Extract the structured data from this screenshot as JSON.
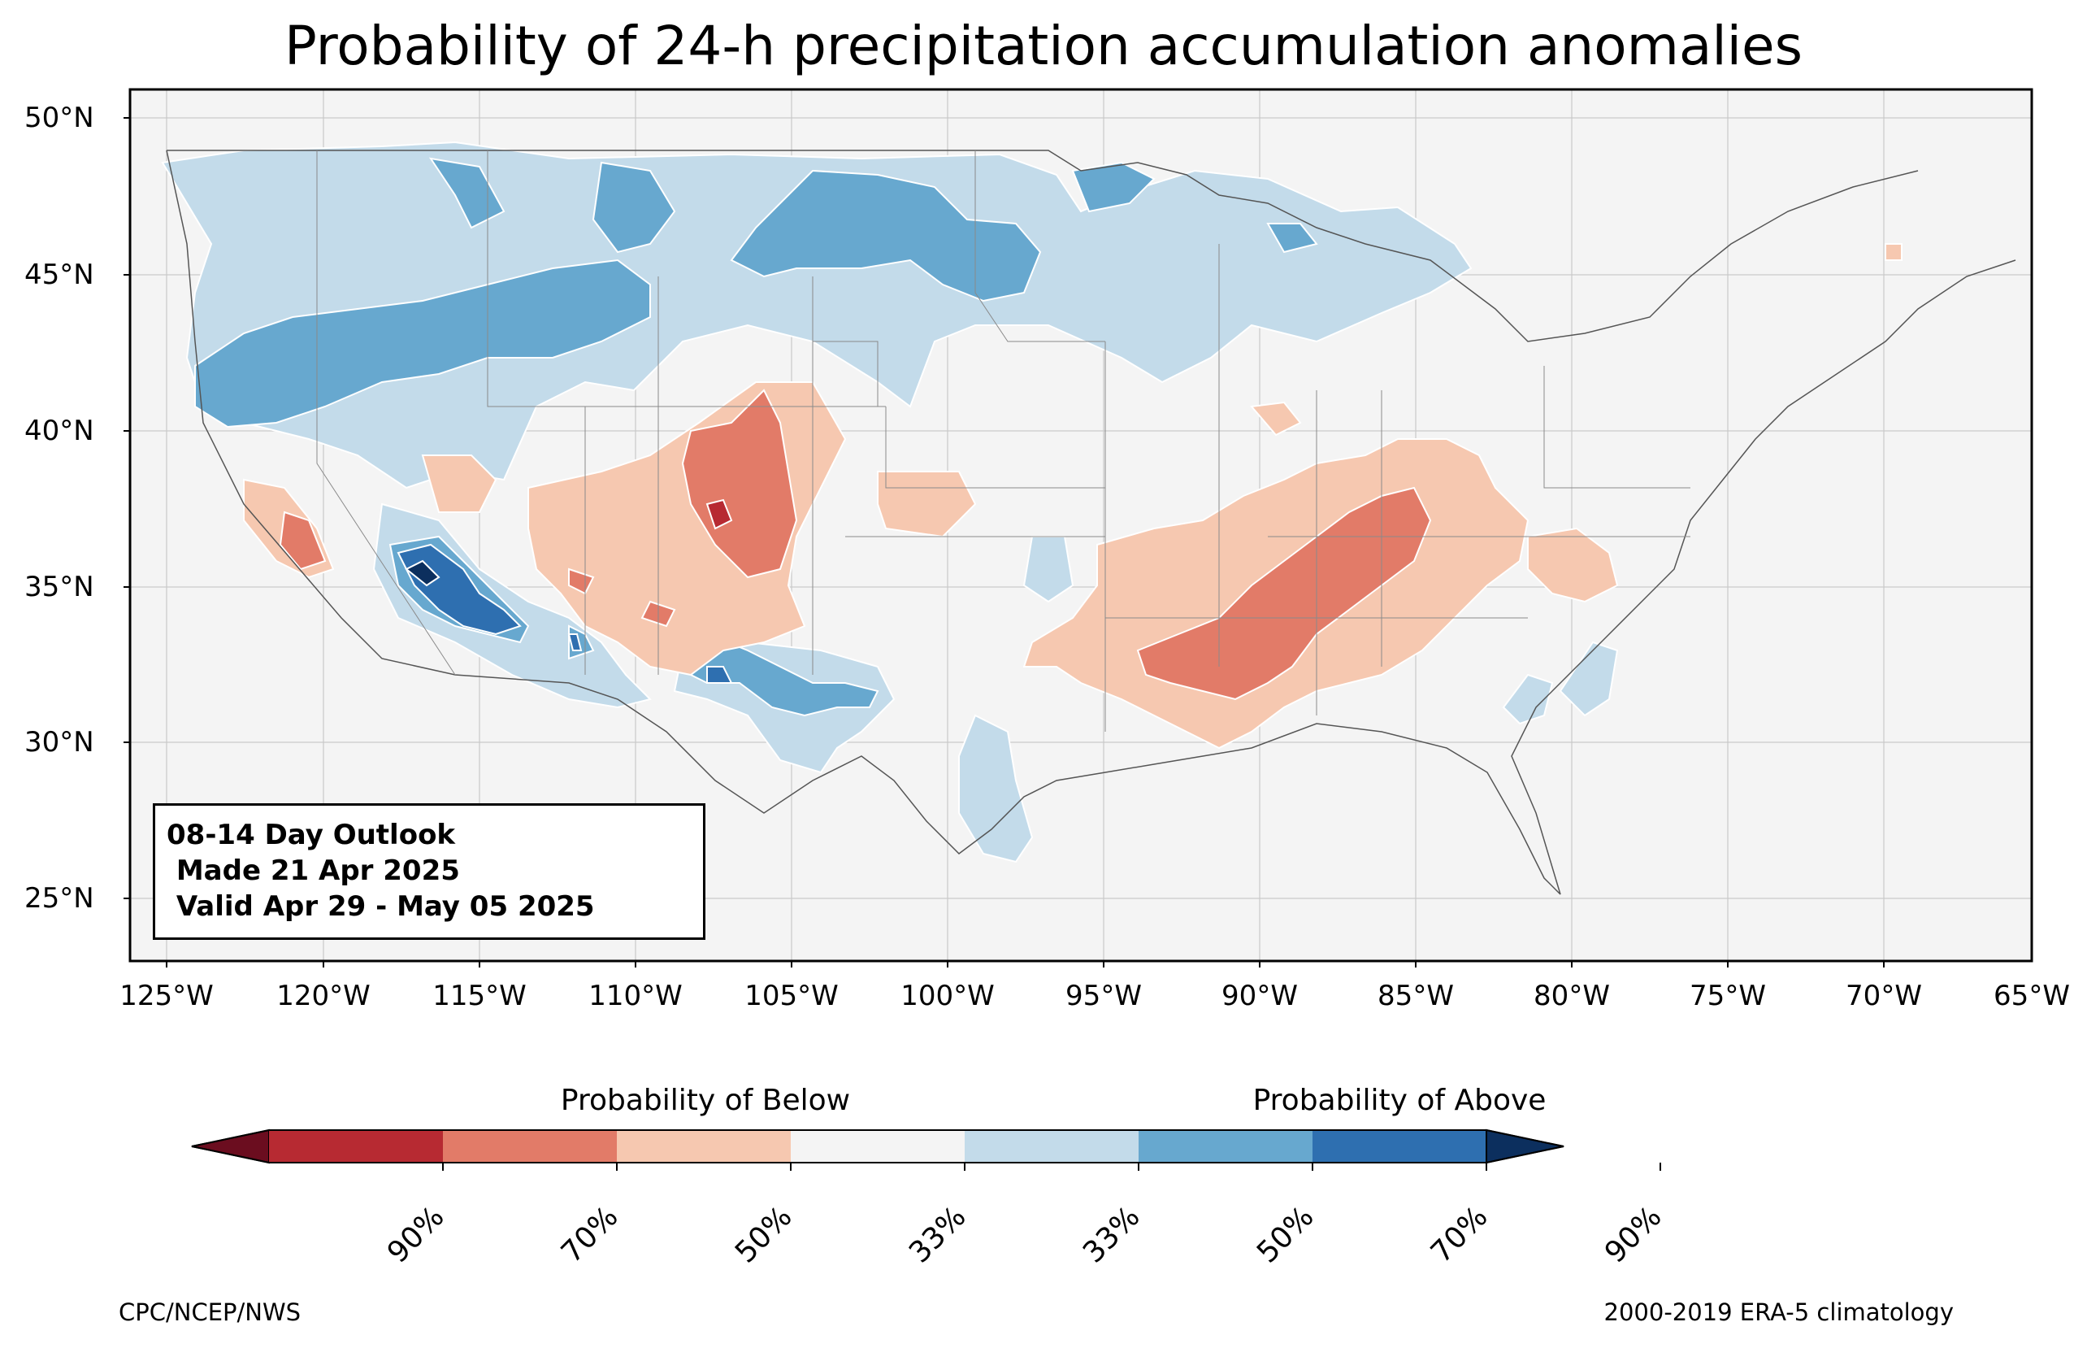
{
  "title": "Probability of 24-h precipitation accumulation anomalies",
  "map": {
    "lat_labels": [
      "50°N",
      "45°N",
      "40°N",
      "35°N",
      "30°N",
      "25°N"
    ],
    "lon_labels": [
      "125°W",
      "120°W",
      "115°W",
      "110°W",
      "105°W",
      "100°W",
      "95°W",
      "90°W",
      "85°W",
      "80°W",
      "75°W",
      "70°W",
      "65°W"
    ],
    "extent": {
      "lon_min": -126,
      "lon_max": -65,
      "lat_min": 23,
      "lat_max": 51
    },
    "background_color": "#f4f4f4",
    "regions": [
      {
        "category": "above-33",
        "color": "#c3dbea",
        "description_note": "northern tier, west coast, great lakes"
      },
      {
        "category": "above-50",
        "color": "#67a8cf"
      },
      {
        "category": "above-70",
        "color": "#2e6fb0"
      },
      {
        "category": "above-90",
        "color": "#0c2f5e"
      },
      {
        "category": "below-33",
        "color": "#f6c8b0"
      },
      {
        "category": "below-50",
        "color": "#e27b68"
      },
      {
        "category": "below-70",
        "color": "#b72a32"
      }
    ]
  },
  "outlook_box": {
    "line1": "08-14 Day Outlook",
    "line2": " Made 21 Apr 2025",
    "line3": " Valid Apr 29 - May 05 2025"
  },
  "colorbar": {
    "below_label": "Probability of Below",
    "above_label": "Probability of Above",
    "colors": [
      "#67001f",
      "#b2182b",
      "#d6604d",
      "#f4a582",
      "#f7f7f7",
      "#92c5de",
      "#4393c3",
      "#2166ac",
      "#053061"
    ],
    "segment_colors": [
      "#6b0d1f",
      "#b72a32",
      "#e27b68",
      "#f6c8b0",
      "#f4f4f4",
      "#c3dbea",
      "#67a8cf",
      "#2e6fb0",
      "#0c2f5e"
    ],
    "tick_labels": [
      "90%",
      "70%",
      "50%",
      "33%",
      "33%",
      "50%",
      "70%",
      "90%"
    ]
  },
  "credits": {
    "left": "CPC/NCEP/NWS",
    "right": "2000-2019 ERA-5 climatology"
  }
}
